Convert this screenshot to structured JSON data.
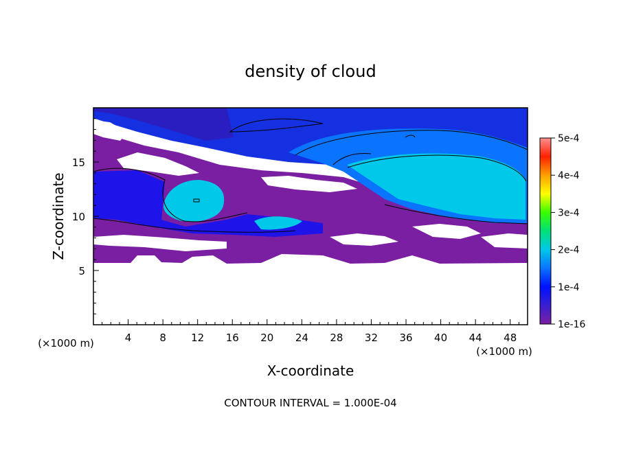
{
  "chart_data": {
    "type": "heatmap",
    "title": "density of cloud",
    "xlabel": "X-coordinate",
    "ylabel": "Z-coordinate",
    "x_unit": "(×1000 m)",
    "z_unit": "(×1000 m)",
    "xlim": [
      0,
      50
    ],
    "ylim": [
      0,
      20
    ],
    "x_ticks": [
      4,
      8,
      12,
      16,
      20,
      24,
      28,
      32,
      36,
      40,
      44,
      48
    ],
    "y_ticks": [
      5,
      10,
      15
    ],
    "colorbar": {
      "min": 1e-16,
      "max": 0.0005,
      "ticks": [
        {
          "value": 0.0005,
          "label": "5e-4"
        },
        {
          "value": 0.0004,
          "label": "4e-4"
        },
        {
          "value": 0.0003,
          "label": "3e-4"
        },
        {
          "value": 0.0002,
          "label": "2e-4"
        },
        {
          "value": 0.0001,
          "label": "1e-4"
        },
        {
          "value": 1e-16,
          "label": "1e-16"
        }
      ],
      "stops": [
        "#7a1fa2",
        "#3a1fd0",
        "#0010ff",
        "#0a74ff",
        "#00c8e8",
        "#00e07a",
        "#39ff00",
        "#ffff00",
        "#ffa000",
        "#ff2000",
        "#ff9090"
      ]
    },
    "footnote": "CONTOUR INTERVAL = 1.000E-04",
    "regions": [
      {
        "level": 1e-08,
        "x": [
          0,
          50
        ],
        "z": [
          6,
          9
        ]
      },
      {
        "level": 5e-05,
        "x": [
          0,
          50
        ],
        "z": [
          9,
          19.8
        ]
      },
      {
        "level": 0.00012,
        "x": [
          28,
          50
        ],
        "z": [
          9.5,
          15.5
        ]
      },
      {
        "level": 0.00012,
        "x": [
          8,
          26
        ],
        "z": [
          9,
          12.5
        ]
      }
    ]
  }
}
